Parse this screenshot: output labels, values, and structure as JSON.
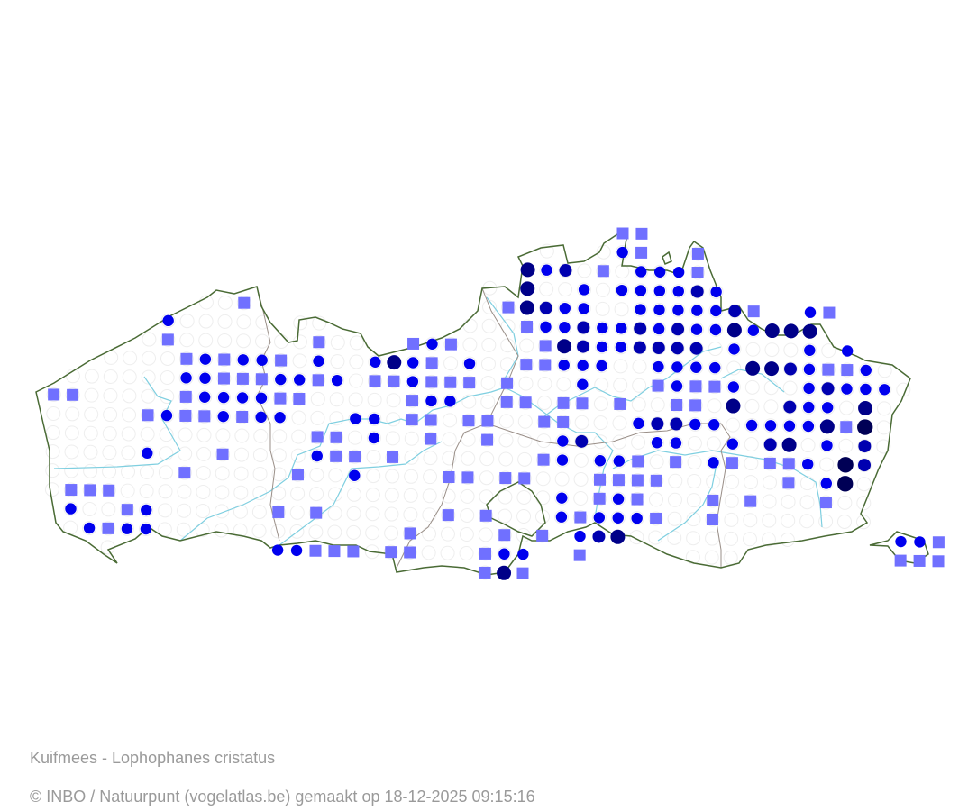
{
  "map": {
    "species_label": "Kuifmees - Lophophanes cristatus",
    "credit": "© INBO / Natuurpunt (vogelatlas.be) gemaakt op 18-12-2025 09:15:16",
    "colors": {
      "border": "#4a6b35",
      "province_border": "#9a8f88",
      "river": "#7fcfe0",
      "empty_cell": "#eeeeee"
    },
    "marker_styles": {
      "s": {
        "shape": "square",
        "color": "#7070ff"
      },
      "b": {
        "shape": "circle",
        "color": "#0000ee"
      },
      "m": {
        "shape": "circle",
        "color": "#0000b0"
      },
      "d": {
        "shape": "circle",
        "color": "#000088"
      },
      "L": {
        "shape": "circle",
        "color": "#000055"
      }
    },
    "grid_markers": [
      [
        0,
        30,
        "s"
      ],
      [
        0,
        31,
        "s"
      ],
      [
        1,
        30,
        "b"
      ],
      [
        1,
        31,
        "s"
      ],
      [
        1,
        34,
        "s"
      ],
      [
        2,
        25,
        "d"
      ],
      [
        2,
        26,
        "b"
      ],
      [
        2,
        27,
        "m"
      ],
      [
        2,
        29,
        "s"
      ],
      [
        2,
        31,
        "b"
      ],
      [
        2,
        32,
        "b"
      ],
      [
        2,
        33,
        "b"
      ],
      [
        2,
        34,
        "s"
      ],
      [
        3,
        25,
        "d"
      ],
      [
        3,
        28,
        "b"
      ],
      [
        3,
        30,
        "b"
      ],
      [
        3,
        31,
        "b"
      ],
      [
        3,
        32,
        "b"
      ],
      [
        3,
        33,
        "b"
      ],
      [
        3,
        34,
        "m"
      ],
      [
        3,
        35,
        "b"
      ],
      [
        4,
        10,
        "s"
      ],
      [
        4,
        24,
        "s"
      ],
      [
        4,
        25,
        "d"
      ],
      [
        4,
        26,
        "m"
      ],
      [
        4,
        27,
        "b"
      ],
      [
        4,
        28,
        "b"
      ],
      [
        4,
        31,
        "b"
      ],
      [
        4,
        32,
        "b"
      ],
      [
        4,
        33,
        "b"
      ],
      [
        4,
        34,
        "b"
      ],
      [
        4,
        35,
        "b"
      ],
      [
        4,
        36,
        "m"
      ],
      [
        4,
        37,
        "s"
      ],
      [
        4,
        40,
        "b"
      ],
      [
        4,
        41,
        "s"
      ],
      [
        5,
        6,
        "b"
      ],
      [
        5,
        25,
        "s"
      ],
      [
        5,
        26,
        "b"
      ],
      [
        5,
        27,
        "b"
      ],
      [
        5,
        28,
        "m"
      ],
      [
        5,
        29,
        "b"
      ],
      [
        5,
        30,
        "b"
      ],
      [
        5,
        31,
        "m"
      ],
      [
        5,
        32,
        "b"
      ],
      [
        5,
        33,
        "m"
      ],
      [
        5,
        34,
        "b"
      ],
      [
        5,
        35,
        "b"
      ],
      [
        5,
        36,
        "d"
      ],
      [
        5,
        37,
        "b"
      ],
      [
        5,
        38,
        "d"
      ],
      [
        5,
        39,
        "d"
      ],
      [
        5,
        40,
        "d"
      ],
      [
        6,
        6,
        "s"
      ],
      [
        6,
        14,
        "s"
      ],
      [
        6,
        19,
        "s"
      ],
      [
        6,
        20,
        "b"
      ],
      [
        6,
        21,
        "s"
      ],
      [
        6,
        26,
        "s"
      ],
      [
        6,
        27,
        "d"
      ],
      [
        6,
        28,
        "m"
      ],
      [
        6,
        29,
        "b"
      ],
      [
        6,
        30,
        "b"
      ],
      [
        6,
        31,
        "m"
      ],
      [
        6,
        32,
        "m"
      ],
      [
        6,
        33,
        "m"
      ],
      [
        6,
        34,
        "m"
      ],
      [
        6,
        36,
        "b"
      ],
      [
        6,
        40,
        "b"
      ],
      [
        6,
        42,
        "b"
      ],
      [
        7,
        7,
        "s"
      ],
      [
        7,
        8,
        "b"
      ],
      [
        7,
        9,
        "s"
      ],
      [
        7,
        10,
        "b"
      ],
      [
        7,
        11,
        "b"
      ],
      [
        7,
        12,
        "s"
      ],
      [
        7,
        14,
        "b"
      ],
      [
        7,
        17,
        "b"
      ],
      [
        7,
        18,
        "d"
      ],
      [
        7,
        19,
        "b"
      ],
      [
        7,
        20,
        "s"
      ],
      [
        7,
        22,
        "b"
      ],
      [
        7,
        25,
        "s"
      ],
      [
        7,
        26,
        "s"
      ],
      [
        7,
        27,
        "b"
      ],
      [
        7,
        28,
        "b"
      ],
      [
        7,
        29,
        "b"
      ],
      [
        7,
        32,
        "b"
      ],
      [
        7,
        33,
        "b"
      ],
      [
        7,
        34,
        "b"
      ],
      [
        7,
        35,
        "b"
      ],
      [
        7,
        37,
        "d"
      ],
      [
        7,
        38,
        "d"
      ],
      [
        7,
        39,
        "m"
      ],
      [
        7,
        40,
        "b"
      ],
      [
        7,
        41,
        "s"
      ],
      [
        7,
        42,
        "s"
      ],
      [
        7,
        43,
        "b"
      ],
      [
        8,
        7,
        "b"
      ],
      [
        8,
        8,
        "b"
      ],
      [
        8,
        9,
        "s"
      ],
      [
        8,
        10,
        "s"
      ],
      [
        8,
        11,
        "s"
      ],
      [
        8,
        12,
        "b"
      ],
      [
        8,
        13,
        "b"
      ],
      [
        8,
        14,
        "s"
      ],
      [
        8,
        15,
        "b"
      ],
      [
        8,
        17,
        "s"
      ],
      [
        8,
        18,
        "s"
      ],
      [
        8,
        19,
        "b"
      ],
      [
        8,
        20,
        "s"
      ],
      [
        8,
        21,
        "s"
      ],
      [
        8,
        22,
        "s"
      ],
      [
        8,
        24,
        "s"
      ],
      [
        8,
        28,
        "b"
      ],
      [
        8,
        32,
        "s"
      ],
      [
        8,
        33,
        "b"
      ],
      [
        8,
        34,
        "s"
      ],
      [
        8,
        35,
        "s"
      ],
      [
        8,
        36,
        "b"
      ],
      [
        8,
        40,
        "b"
      ],
      [
        8,
        41,
        "m"
      ],
      [
        8,
        42,
        "b"
      ],
      [
        8,
        43,
        "b"
      ],
      [
        8,
        44,
        "b"
      ],
      [
        9,
        0,
        "s"
      ],
      [
        9,
        1,
        "s"
      ],
      [
        9,
        7,
        "s"
      ],
      [
        9,
        8,
        "b"
      ],
      [
        9,
        9,
        "b"
      ],
      [
        9,
        10,
        "b"
      ],
      [
        9,
        11,
        "b"
      ],
      [
        9,
        12,
        "s"
      ],
      [
        9,
        13,
        "s"
      ],
      [
        9,
        19,
        "s"
      ],
      [
        9,
        20,
        "b"
      ],
      [
        9,
        21,
        "b"
      ],
      [
        9,
        24,
        "s"
      ],
      [
        9,
        25,
        "s"
      ],
      [
        9,
        27,
        "s"
      ],
      [
        9,
        28,
        "s"
      ],
      [
        9,
        30,
        "s"
      ],
      [
        9,
        33,
        "s"
      ],
      [
        9,
        34,
        "s"
      ],
      [
        9,
        36,
        "d"
      ],
      [
        9,
        39,
        "m"
      ],
      [
        9,
        40,
        "b"
      ],
      [
        9,
        41,
        "b"
      ],
      [
        9,
        43,
        "d"
      ],
      [
        10,
        5,
        "s"
      ],
      [
        10,
        6,
        "b"
      ],
      [
        10,
        7,
        "s"
      ],
      [
        10,
        8,
        "s"
      ],
      [
        10,
        9,
        "b"
      ],
      [
        10,
        10,
        "s"
      ],
      [
        10,
        11,
        "b"
      ],
      [
        10,
        12,
        "b"
      ],
      [
        10,
        16,
        "b"
      ],
      [
        10,
        17,
        "b"
      ],
      [
        10,
        19,
        "s"
      ],
      [
        10,
        20,
        "s"
      ],
      [
        10,
        22,
        "s"
      ],
      [
        10,
        23,
        "s"
      ],
      [
        10,
        26,
        "s"
      ],
      [
        10,
        27,
        "s"
      ],
      [
        10,
        31,
        "b"
      ],
      [
        10,
        32,
        "m"
      ],
      [
        10,
        33,
        "m"
      ],
      [
        10,
        34,
        "b"
      ],
      [
        10,
        35,
        "b"
      ],
      [
        10,
        37,
        "b"
      ],
      [
        10,
        38,
        "b"
      ],
      [
        10,
        39,
        "b"
      ],
      [
        10,
        40,
        "b"
      ],
      [
        10,
        41,
        "d"
      ],
      [
        10,
        42,
        "s"
      ],
      [
        10,
        43,
        "L"
      ],
      [
        11,
        14,
        "s"
      ],
      [
        11,
        15,
        "s"
      ],
      [
        11,
        17,
        "b"
      ],
      [
        11,
        20,
        "s"
      ],
      [
        11,
        23,
        "s"
      ],
      [
        11,
        27,
        "b"
      ],
      [
        11,
        28,
        "m"
      ],
      [
        11,
        32,
        "b"
      ],
      [
        11,
        33,
        "b"
      ],
      [
        11,
        36,
        "b"
      ],
      [
        11,
        38,
        "m"
      ],
      [
        11,
        39,
        "d"
      ],
      [
        11,
        41,
        "b"
      ],
      [
        11,
        43,
        "m"
      ],
      [
        12,
        5,
        "b"
      ],
      [
        12,
        9,
        "s"
      ],
      [
        12,
        14,
        "b"
      ],
      [
        12,
        15,
        "s"
      ],
      [
        12,
        16,
        "s"
      ],
      [
        12,
        18,
        "s"
      ],
      [
        12,
        26,
        "s"
      ],
      [
        12,
        27,
        "b"
      ],
      [
        12,
        29,
        "b"
      ],
      [
        12,
        30,
        "b"
      ],
      [
        12,
        31,
        "s"
      ],
      [
        12,
        33,
        "s"
      ],
      [
        12,
        35,
        "b"
      ],
      [
        12,
        36,
        "s"
      ],
      [
        12,
        38,
        "s"
      ],
      [
        12,
        39,
        "s"
      ],
      [
        12,
        40,
        "b"
      ],
      [
        12,
        42,
        "L"
      ],
      [
        12,
        43,
        "m"
      ],
      [
        13,
        7,
        "s"
      ],
      [
        13,
        13,
        "s"
      ],
      [
        13,
        16,
        "b"
      ],
      [
        13,
        21,
        "s"
      ],
      [
        13,
        22,
        "s"
      ],
      [
        13,
        24,
        "s"
      ],
      [
        13,
        25,
        "s"
      ],
      [
        13,
        29,
        "s"
      ],
      [
        13,
        30,
        "s"
      ],
      [
        13,
        31,
        "s"
      ],
      [
        13,
        32,
        "s"
      ],
      [
        13,
        39,
        "s"
      ],
      [
        13,
        41,
        "b"
      ],
      [
        13,
        42,
        "L"
      ],
      [
        14,
        1,
        "s"
      ],
      [
        14,
        2,
        "s"
      ],
      [
        14,
        3,
        "s"
      ],
      [
        14,
        27,
        "b"
      ],
      [
        14,
        29,
        "s"
      ],
      [
        14,
        30,
        "b"
      ],
      [
        14,
        31,
        "s"
      ],
      [
        14,
        35,
        "s"
      ],
      [
        14,
        37,
        "s"
      ],
      [
        14,
        41,
        "s"
      ],
      [
        15,
        1,
        "b"
      ],
      [
        15,
        4,
        "s"
      ],
      [
        15,
        5,
        "b"
      ],
      [
        15,
        12,
        "s"
      ],
      [
        15,
        14,
        "s"
      ],
      [
        15,
        21,
        "s"
      ],
      [
        15,
        23,
        "s"
      ],
      [
        15,
        27,
        "b"
      ],
      [
        15,
        28,
        "s"
      ],
      [
        15,
        29,
        "b"
      ],
      [
        15,
        30,
        "b"
      ],
      [
        15,
        31,
        "b"
      ],
      [
        15,
        32,
        "s"
      ],
      [
        15,
        35,
        "s"
      ],
      [
        16,
        2,
        "b"
      ],
      [
        16,
        3,
        "s"
      ],
      [
        16,
        4,
        "b"
      ],
      [
        16,
        5,
        "b"
      ],
      [
        16,
        19,
        "s"
      ],
      [
        16,
        24,
        "s"
      ],
      [
        16,
        26,
        "s"
      ],
      [
        16,
        28,
        "b"
      ],
      [
        16,
        29,
        "m"
      ],
      [
        16,
        30,
        "d"
      ],
      [
        16,
        45,
        "b"
      ],
      [
        16,
        46,
        "b"
      ],
      [
        16,
        47,
        "s"
      ],
      [
        17,
        12,
        "b"
      ],
      [
        17,
        13,
        "b"
      ],
      [
        17,
        14,
        "s"
      ],
      [
        17,
        15,
        "s"
      ],
      [
        17,
        16,
        "s"
      ],
      [
        17,
        18,
        "s"
      ],
      [
        17,
        19,
        "s"
      ],
      [
        17,
        23,
        "s"
      ],
      [
        17,
        24,
        "b"
      ],
      [
        17,
        25,
        "b"
      ],
      [
        17,
        28,
        "s"
      ],
      [
        17,
        45,
        "s"
      ],
      [
        17,
        46,
        "s"
      ],
      [
        17,
        47,
        "s"
      ],
      [
        18,
        23,
        "s"
      ],
      [
        18,
        24,
        "d"
      ],
      [
        18,
        25,
        "s"
      ]
    ]
  }
}
